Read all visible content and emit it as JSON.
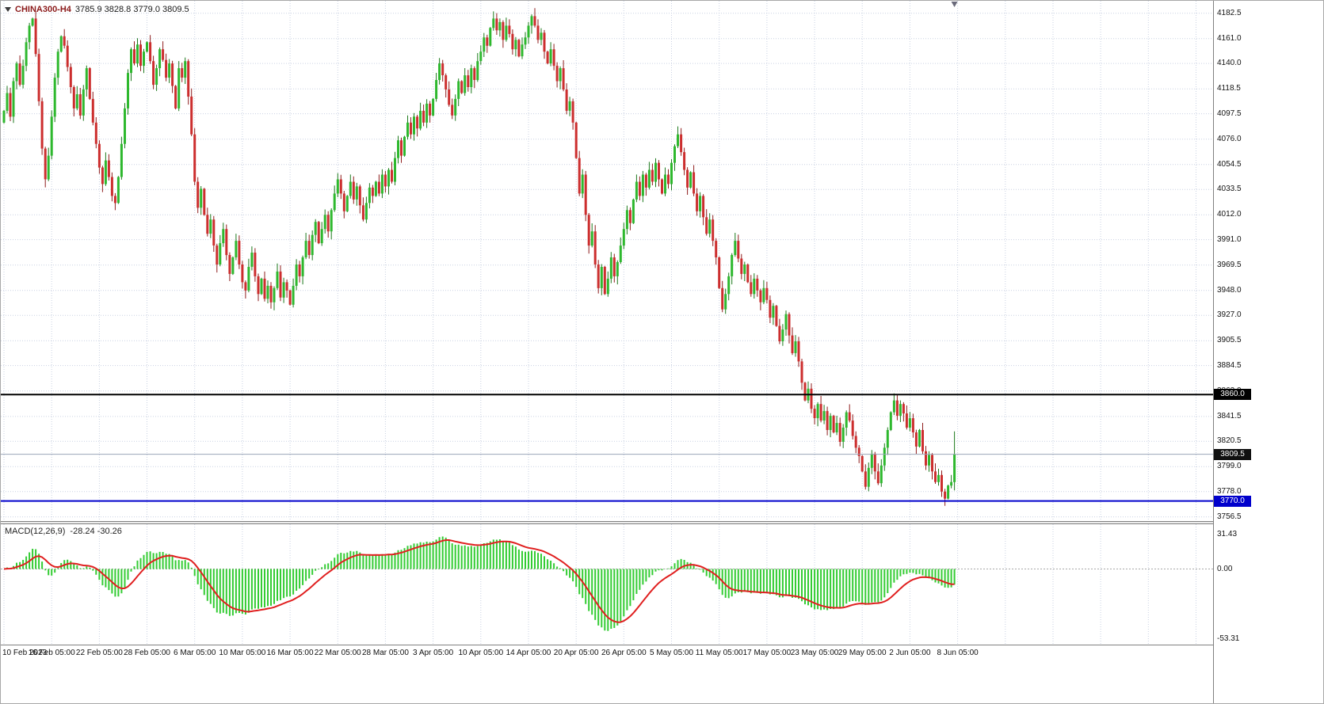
{
  "header": {
    "symbol_period": "CHINA300-H4",
    "ohlc_text": "3785.9 3828.8 3779.0 3809.5"
  },
  "colors": {
    "background": "#ffffff",
    "grid": "#c9d1e2",
    "bull": "#2eb82e",
    "bull_wick": "#1d7a1d",
    "bear": "#cc2e2e",
    "bear_wick": "#8f1d1d",
    "hline_black": "#000000",
    "hline_blue": "#0000cc",
    "current_price_line": "#9aa4b8",
    "current_tag_bg": "#101010",
    "macd_histogram": "#33cc33",
    "macd_signal": "#e01f1f",
    "axis_text": "#111111",
    "shift_marker": "#6a6a7a"
  },
  "chart_data": {
    "type": "candlestick",
    "title": "CHINA300-H4",
    "timeframe": "H4",
    "ylim": [
      3753,
      4193
    ],
    "price_axis_labels": [
      "4182.5",
      "4161.0",
      "4140.0",
      "4118.5",
      "4097.5",
      "4076.0",
      "4054.5",
      "4033.5",
      "4012.0",
      "3991.0",
      "3969.5",
      "3948.0",
      "3927.0",
      "3905.5",
      "3884.5",
      "3863.0",
      "3841.5",
      "3820.5",
      "3799.0",
      "3778.0",
      "3756.5"
    ],
    "x_labels": [
      "10 Feb 2023",
      "16 Feb 05:00",
      "22 Feb 05:00",
      "28 Feb 05:00",
      "6 Mar 05:00",
      "10 Mar 05:00",
      "16 Mar 05:00",
      "22 Mar 05:00",
      "28 Mar 05:00",
      "3 Apr 05:00",
      "10 Apr 05:00",
      "14 Apr 05:00",
      "20 Apr 05:00",
      "26 Apr 05:00",
      "5 May 05:00",
      "11 May 05:00",
      "17 May 05:00",
      "23 May 05:00",
      "29 May 05:00",
      "2 Jun 05:00",
      "8 Jun 05:00"
    ],
    "bars_per_x_label": 15,
    "first_open": 4090,
    "closes": [
      4100,
      4115,
      4095,
      4125,
      4140,
      4122,
      4138,
      4158,
      4172,
      4178,
      4148,
      4108,
      4068,
      4042,
      4062,
      4095,
      4128,
      4150,
      4163,
      4155,
      4137,
      4120,
      4102,
      4114,
      4096,
      4118,
      4136,
      4110,
      4090,
      4072,
      4052,
      4038,
      4058,
      4044,
      4028,
      4022,
      4044,
      4072,
      4102,
      4132,
      4152,
      4140,
      4156,
      4138,
      4150,
      4158,
      4142,
      4122,
      4136,
      4152,
      4143,
      4128,
      4140,
      4121,
      4102,
      4136,
      4128,
      4142,
      4112,
      4080,
      4040,
      4018,
      4034,
      4012,
      3996,
      4008,
      3986,
      3970,
      3988,
      4000,
      3978,
      3962,
      3976,
      3990,
      3970,
      3955,
      3948,
      3968,
      3980,
      3960,
      3945,
      3958,
      3941,
      3952,
      3938,
      3950,
      3964,
      3942,
      3955,
      3948,
      3936,
      3952,
      3970,
      3960,
      3976,
      3990,
      3978,
      3995,
      4006,
      3988,
      4000,
      4012,
      3998,
      4016,
      4030,
      4042,
      4030,
      4015,
      4028,
      4040,
      4025,
      4036,
      4020,
      4008,
      4022,
      4035,
      4028,
      4040,
      4030,
      4046,
      4036,
      4050,
      4040,
      4060,
      4075,
      4062,
      4078,
      4090,
      4080,
      4095,
      4085,
      4100,
      4090,
      4106,
      4096,
      4110,
      4126,
      4140,
      4130,
      4118,
      4105,
      4096,
      4110,
      4125,
      4115,
      4130,
      4120,
      4136,
      4126,
      4142,
      4150,
      4162,
      4155,
      4170,
      4178,
      4168,
      4175,
      4160,
      4172,
      4165,
      4152,
      4160,
      4146,
      4156,
      4162,
      4172,
      4180,
      4172,
      4160,
      4166,
      4150,
      4140,
      4152,
      4138,
      4125,
      4136,
      4118,
      4100,
      4108,
      4090,
      4060,
      4030,
      4046,
      4012,
      3986,
      3998,
      3970,
      3950,
      3968,
      3945,
      3958,
      3976,
      3960,
      3972,
      3986,
      4000,
      4016,
      4005,
      4025,
      4040,
      4028,
      4046,
      4035,
      4050,
      4040,
      4056,
      4042,
      4030,
      4046,
      4038,
      4056,
      4070,
      4080,
      4065,
      4050,
      4035,
      4048,
      4030,
      4015,
      4028,
      4010,
      3996,
      4008,
      3990,
      3976,
      3950,
      3932,
      3945,
      3960,
      3978,
      3990,
      3975,
      3962,
      3970,
      3955,
      3945,
      3958,
      3948,
      3938,
      3950,
      3940,
      3925,
      3935,
      3918,
      3905,
      3915,
      3928,
      3910,
      3895,
      3905,
      3888,
      3870,
      3855,
      3865,
      3848,
      3840,
      3852,
      3838,
      3846,
      3830,
      3842,
      3828,
      3836,
      3820,
      3832,
      3845,
      3838,
      3825,
      3815,
      3808,
      3795,
      3782,
      3798,
      3810,
      3795,
      3785,
      3800,
      3815,
      3830,
      3845,
      3855,
      3842,
      3852,
      3844,
      3832,
      3840,
      3828,
      3816,
      3830,
      3812,
      3800,
      3809,
      3795,
      3786,
      3792,
      3778,
      3772,
      3783,
      3786,
      3809.5
    ],
    "last_candle": {
      "open": 3785.9,
      "high": 3828.8,
      "low": 3779.0,
      "close": 3809.5
    },
    "current_price": 3809.5,
    "current_price_label": "3809.5",
    "hlines": [
      {
        "price": 3860.0,
        "label": "3860.0",
        "color_key": "hline_black"
      },
      {
        "price": 3770.0,
        "label": "3770.0",
        "color_key": "hline_blue"
      }
    ],
    "indicator": {
      "label": "MACD(12,26,9)",
      "values_text": "-28.24 -30.26",
      "fast": 12,
      "slow": 26,
      "signal": 9,
      "axis_labels": [
        "31.43",
        "0.00",
        "-53.31"
      ]
    }
  }
}
